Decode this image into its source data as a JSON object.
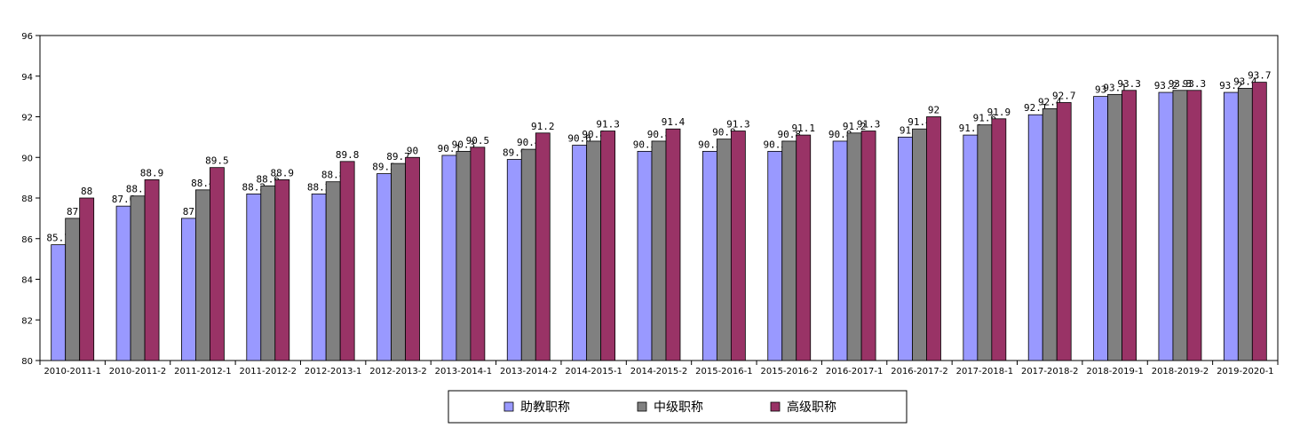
{
  "chart_data": {
    "type": "bar",
    "title": "",
    "xlabel": "",
    "ylabel": "",
    "ylim": [
      80,
      96
    ],
    "yticks": [
      80,
      82,
      84,
      86,
      88,
      90,
      92,
      94,
      96
    ],
    "grid": false,
    "legend_position": "bottom-center",
    "categories": [
      "2010-2011-1",
      "2010-2011-2",
      "2011-2012-1",
      "2011-2012-2",
      "2012-2013-1",
      "2012-2013-2",
      "2013-2014-1",
      "2013-2014-2",
      "2014-2015-1",
      "2014-2015-2",
      "2015-2016-1",
      "2015-2016-2",
      "2016-2017-1",
      "2016-2017-2",
      "2017-2018-1",
      "2017-2018-2",
      "2018-2019-1",
      "2018-2019-2",
      "2019-2020-1"
    ],
    "series": [
      {
        "name": "助教职称",
        "color": "#9999ff",
        "values": [
          85.7,
          87.6,
          87,
          88.2,
          88.2,
          89.2,
          90.1,
          89.9,
          90.6,
          90.3,
          90.3,
          90.3,
          90.8,
          91,
          91.1,
          92.1,
          93,
          93.2,
          93.2
        ]
      },
      {
        "name": "中级职称",
        "color": "#808080",
        "values": [
          87,
          88.1,
          88.4,
          88.6,
          88.8,
          89.7,
          90.3,
          90.4,
          90.8,
          90.8,
          90.9,
          90.8,
          91.2,
          91.4,
          91.6,
          92.4,
          93.1,
          93.3,
          93.4
        ]
      },
      {
        "name": "高级职称",
        "color": "#993366",
        "values": [
          88,
          88.9,
          89.5,
          88.9,
          89.8,
          90,
          90.5,
          91.2,
          91.3,
          91.4,
          91.3,
          91.1,
          91.3,
          92,
          91.9,
          92.7,
          93.3,
          93.3,
          93.7
        ]
      }
    ]
  }
}
